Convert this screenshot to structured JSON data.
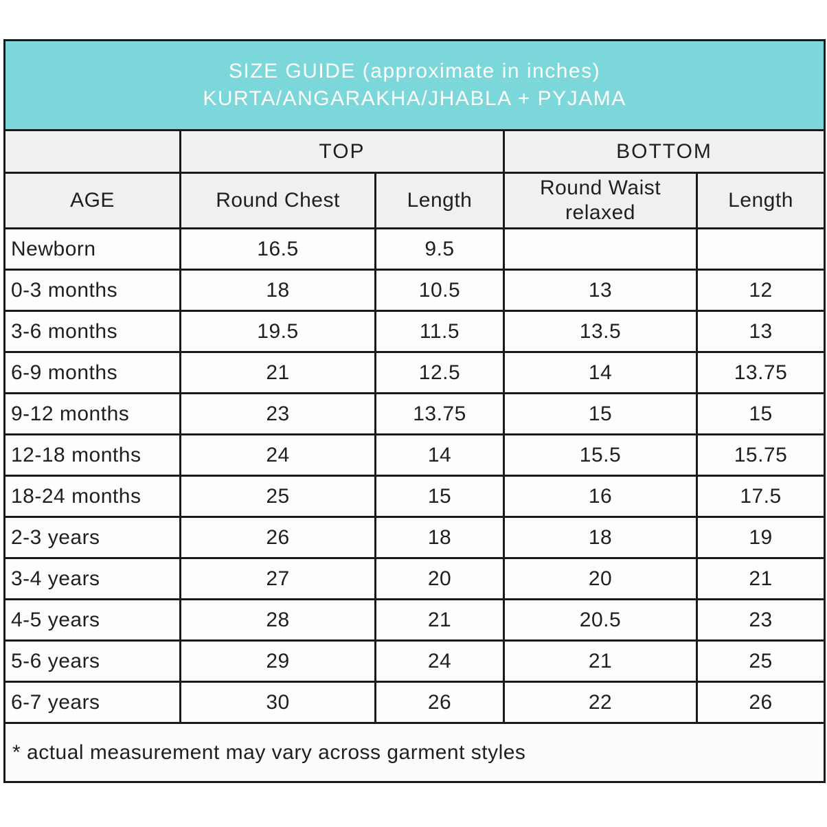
{
  "colors": {
    "banner_bg": "#7bd7d9",
    "banner_text": "#ffffff",
    "header_bg": "#f0f0f0",
    "cell_bg": "#fdfdfd",
    "border": "#1a1a1a",
    "text": "#1f1f1f"
  },
  "chart_data": {
    "type": "table",
    "title_lines": [
      "SIZE GUIDE (approximate in inches)",
      "KURTA/ANGARAKHA/JHABLA + PYJAMA"
    ],
    "column_groups": {
      "top": "TOP",
      "bottom": "BOTTOM"
    },
    "columns": [
      "AGE",
      "Round Chest",
      "Length",
      "Round Waist relaxed",
      "Length"
    ],
    "rows": [
      [
        "Newborn",
        "16.5",
        "9.5",
        "",
        ""
      ],
      [
        "0-3 months",
        "18",
        "10.5",
        "13",
        "12"
      ],
      [
        "3-6 months",
        "19.5",
        "11.5",
        "13.5",
        "13"
      ],
      [
        "6-9 months",
        "21",
        "12.5",
        "14",
        "13.75"
      ],
      [
        "9-12 months",
        "23",
        "13.75",
        "15",
        "15"
      ],
      [
        "12-18 months",
        "24",
        "14",
        "15.5",
        "15.75"
      ],
      [
        "18-24 months",
        "25",
        "15",
        "16",
        "17.5"
      ],
      [
        "2-3 years",
        "26",
        "18",
        "18",
        "19"
      ],
      [
        "3-4 years",
        "27",
        "20",
        "20",
        "21"
      ],
      [
        "4-5 years",
        "28",
        "21",
        "20.5",
        "23"
      ],
      [
        "5-6 years",
        "29",
        "24",
        "21",
        "25"
      ],
      [
        "6-7 years",
        "30",
        "26",
        "22",
        "26"
      ]
    ],
    "footnote": "* actual measurement may vary across garment styles"
  }
}
